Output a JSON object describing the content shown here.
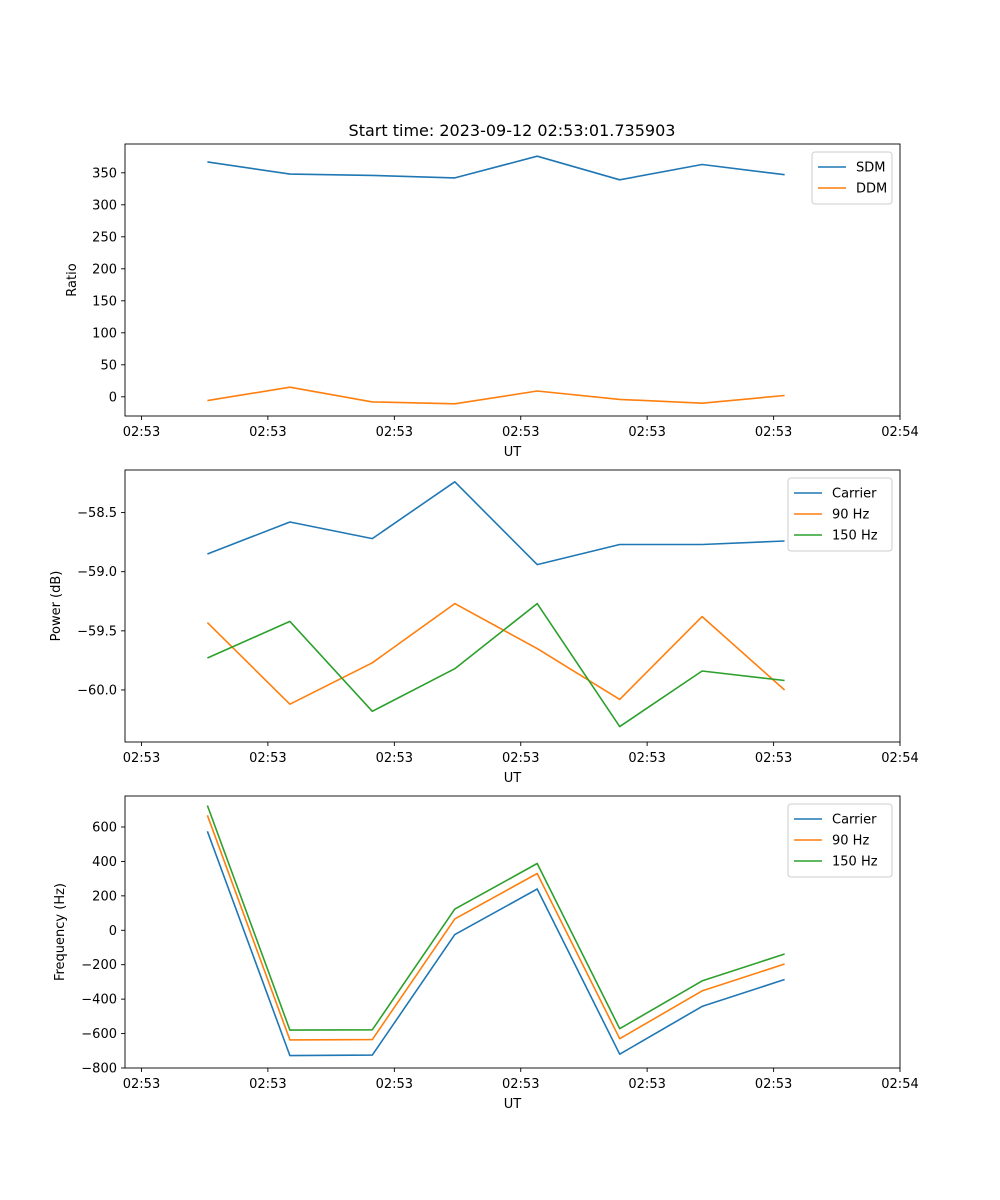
{
  "figure_title": "Start time: 2023-09-12 02:53:01.735903",
  "colors": {
    "blue": "#1f77b4",
    "orange": "#ff7f0e",
    "green": "#2ca02c"
  },
  "chart_data": [
    {
      "type": "line",
      "title": "Start time: 2023-09-12 02:53:01.735903",
      "xlabel": "UT",
      "ylabel": "Ratio",
      "xlim": [
        0,
        9.4
      ],
      "ylim": [
        -30,
        395
      ],
      "x": [
        1,
        2,
        3,
        4,
        5,
        6,
        7,
        8
      ],
      "x_tick_positions": [
        0.2,
        1.733,
        3.267,
        4.8,
        6.333,
        7.867,
        9.4
      ],
      "x_tick_labels": [
        "02:53",
        "02:53",
        "02:53",
        "02:53",
        "02:53",
        "02:53",
        "02:54"
      ],
      "y_ticks": [
        0,
        50,
        100,
        150,
        200,
        250,
        300,
        350
      ],
      "y_tick_labels": [
        "0",
        "50",
        "100",
        "150",
        "200",
        "250",
        "300",
        "350"
      ],
      "legend_position": "upper-right",
      "series": [
        {
          "name": "SDM",
          "color": "#1f77b4",
          "values": [
            367,
            348,
            346,
            342,
            376,
            339,
            363,
            347
          ]
        },
        {
          "name": "DDM",
          "color": "#ff7f0e",
          "values": [
            -6,
            15,
            -8,
            -11,
            9,
            -4,
            -10,
            2
          ]
        }
      ]
    },
    {
      "type": "line",
      "xlabel": "UT",
      "ylabel": "Power (dB)",
      "xlim": [
        0,
        9.4
      ],
      "ylim": [
        -60.44,
        -58.14
      ],
      "x": [
        1,
        2,
        3,
        4,
        5,
        6,
        7,
        8
      ],
      "x_tick_positions": [
        0.2,
        1.733,
        3.267,
        4.8,
        6.333,
        7.867,
        9.4
      ],
      "x_tick_labels": [
        "02:53",
        "02:53",
        "02:53",
        "02:53",
        "02:53",
        "02:53",
        "02:54"
      ],
      "y_ticks": [
        -60.0,
        -59.5,
        -59.0,
        -58.5
      ],
      "y_tick_labels": [
        "−60.0",
        "−59.5",
        "−59.0",
        "−58.5"
      ],
      "legend_position": "upper-right",
      "series": [
        {
          "name": "Carrier",
          "color": "#1f77b4",
          "values": [
            -58.85,
            -58.58,
            -58.72,
            -58.24,
            -58.94,
            -58.77,
            -58.77,
            -58.74
          ]
        },
        {
          "name": "90 Hz",
          "color": "#ff7f0e",
          "values": [
            -59.43,
            -60.12,
            -59.77,
            -59.27,
            -59.65,
            -60.08,
            -59.38,
            -60.0
          ]
        },
        {
          "name": "150 Hz",
          "color": "#2ca02c",
          "values": [
            -59.73,
            -59.42,
            -60.18,
            -59.82,
            -59.27,
            -60.31,
            -59.84,
            -59.92
          ]
        }
      ]
    },
    {
      "type": "line",
      "xlabel": "UT",
      "ylabel": "Frequency (Hz)",
      "xlim": [
        0,
        9.4
      ],
      "ylim": [
        -800,
        780
      ],
      "x": [
        1,
        2,
        3,
        4,
        5,
        6,
        7,
        8
      ],
      "x_tick_positions": [
        0.2,
        1.733,
        3.267,
        4.8,
        6.333,
        7.867,
        9.4
      ],
      "x_tick_labels": [
        "02:53",
        "02:53",
        "02:53",
        "02:53",
        "02:53",
        "02:53",
        "02:54"
      ],
      "y_ticks": [
        -800,
        -600,
        -400,
        -200,
        0,
        200,
        400,
        600
      ],
      "y_tick_labels": [
        "−800",
        "−600",
        "−400",
        "−200",
        "0",
        "200",
        "400",
        "600"
      ],
      "legend_position": "upper-right",
      "series": [
        {
          "name": "Carrier",
          "color": "#1f77b4",
          "values": [
            575,
            -728,
            -725,
            -25,
            240,
            -720,
            -442,
            -286
          ]
        },
        {
          "name": "90 Hz",
          "color": "#ff7f0e",
          "values": [
            668,
            -637,
            -635,
            66,
            330,
            -630,
            -352,
            -196
          ]
        },
        {
          "name": "150 Hz",
          "color": "#2ca02c",
          "values": [
            725,
            -580,
            -578,
            123,
            388,
            -572,
            -294,
            -138
          ]
        }
      ]
    }
  ]
}
